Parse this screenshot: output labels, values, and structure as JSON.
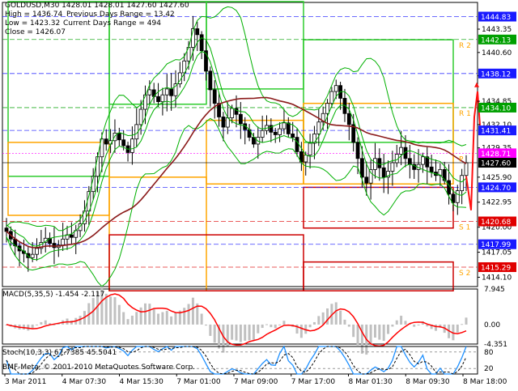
{
  "header": {
    "line1": "GOLDUSD,M30  1428.01 1428.01 1427.60 1427.60",
    "high_label": "High = 1436.74",
    "prev_range_label": "Previous Days Range = 13.42",
    "low_label": "Low = 1423.32",
    "curr_range_label": "Current Days Range = 494",
    "close_label": "Close = 1426.07"
  },
  "macd_label": "MACD(5,35,5) -1.454 -2.117",
  "stoch_label": "Stoch(10,3,3) 67.7385 45.5041",
  "copyright": "BMF-Meta, © 2001-2010 MetaQuotes Software Corp.",
  "pivot_labels": [
    "R 2",
    "R 1",
    "P",
    "S 1",
    "S 2"
  ],
  "chart_data": {
    "type": "candlestick",
    "symbol": "GOLDUSD",
    "timeframe": "M30",
    "price_axis": {
      "range": [
        1413.0,
        1446.5
      ],
      "ticks": [
        "1443.35",
        "1440.60",
        "1437.85",
        "1434.85",
        "1432.10",
        "1429.35",
        "1425.90",
        "1422.95",
        "1420.00",
        "1417.05",
        "1414.10"
      ]
    },
    "levels": [
      {
        "value": 1444.83,
        "label": "1444.83",
        "color": "#1a1aff"
      },
      {
        "value": 1442.13,
        "label": "1442.13",
        "color": "#00a000"
      },
      {
        "value": 1438.12,
        "label": "1438.12",
        "color": "#1a1aff"
      },
      {
        "value": 1434.1,
        "label": "1434.10",
        "color": "#00a000"
      },
      {
        "value": 1431.41,
        "label": "1431.41",
        "color": "#1a1aff"
      },
      {
        "value": 1428.71,
        "label": "1428.71",
        "color": "#ff00ff"
      },
      {
        "value": 1427.6,
        "label": "1427.60",
        "color": "#000000"
      },
      {
        "value": 1424.7,
        "label": "1424.70",
        "color": "#1a1aff"
      },
      {
        "value": 1420.68,
        "label": "1420.68",
        "color": "#e00000"
      },
      {
        "value": 1417.99,
        "label": "1417.99",
        "color": "#1a1aff"
      },
      {
        "value": 1415.29,
        "label": "1415.29",
        "color": "#e00000"
      }
    ],
    "time_axis": [
      "3 Mar 2011",
      "4 Mar 07:30",
      "4 Mar 15:30",
      "7 Mar 01:00",
      "7 Mar 09:00",
      "7 Mar 17:00",
      "8 Mar 01:30",
      "8 Mar 09:30",
      "8 Mar 18:00"
    ],
    "close_series": [
      1419.5,
      1418.6,
      1417.8,
      1417.2,
      1416.9,
      1416.4,
      1416.8,
      1417.5,
      1418.2,
      1418.7,
      1418.1,
      1417.6,
      1417.9,
      1418.6,
      1419.1,
      1418.8,
      1419.6,
      1420.4,
      1421.9,
      1424.2,
      1426.0,
      1428.3,
      1430.4,
      1429.8,
      1430.2,
      1431.1,
      1430.3,
      1429.6,
      1428.8,
      1430.4,
      1432.1,
      1433.9,
      1435.6,
      1436.2,
      1435.4,
      1434.8,
      1435.6,
      1436.3,
      1435.5,
      1436.9,
      1438.2,
      1439.6,
      1441.2,
      1443.4,
      1442.7,
      1440.8,
      1438.4,
      1436.2,
      1434.6,
      1433.0,
      1431.8,
      1432.9,
      1434.0,
      1433.3,
      1432.2,
      1431.5,
      1430.6,
      1429.8,
      1430.6,
      1431.4,
      1432.0,
      1431.2,
      1430.9,
      1431.6,
      1432.3,
      1431.0,
      1430.6,
      1428.9,
      1427.7,
      1428.5,
      1429.9,
      1431.0,
      1432.4,
      1433.4,
      1434.6,
      1436.0,
      1436.7,
      1435.2,
      1433.4,
      1432.1,
      1430.0,
      1428.1,
      1425.9,
      1425.2,
      1426.8,
      1428.1,
      1427.0,
      1425.9,
      1426.6,
      1427.6,
      1428.6,
      1429.4,
      1428.1,
      1427.4,
      1426.8,
      1427.4,
      1428.3,
      1427.1,
      1426.5,
      1426.1,
      1426.8,
      1425.5,
      1423.9,
      1422.9,
      1424.3,
      1426.1,
      1427.6
    ],
    "macd": {
      "range": [
        -4.351,
        7.945
      ],
      "ticks": [
        "7.945",
        "0.00",
        "-4.351"
      ],
      "value": -1.454,
      "signal": -2.117
    },
    "stoch": {
      "range": [
        0,
        100
      ],
      "ticks": [
        "80",
        "20"
      ],
      "k": 67.7385,
      "d": 45.5041
    },
    "pivots": {
      "R2": 1442.13,
      "R1": 1434.1,
      "P": 1428.71,
      "S1": 1420.68,
      "S2": 1415.29
    }
  },
  "colors": {
    "candle": "#000000",
    "bollinger": "#00b000",
    "ma_slow": "#8b1a1a",
    "ma_fast": "#ff1010",
    "macd_hist": "#c0c0c0",
    "macd_signal": "#ff0000",
    "stoch_main": "#1e90ff",
    "stoch_signal": "#000000",
    "green_boxes": "#2ecc2e",
    "orange_boxes": "#ffa500",
    "red_boxes": "#cc0000",
    "pivot_label": "#ffa500"
  }
}
